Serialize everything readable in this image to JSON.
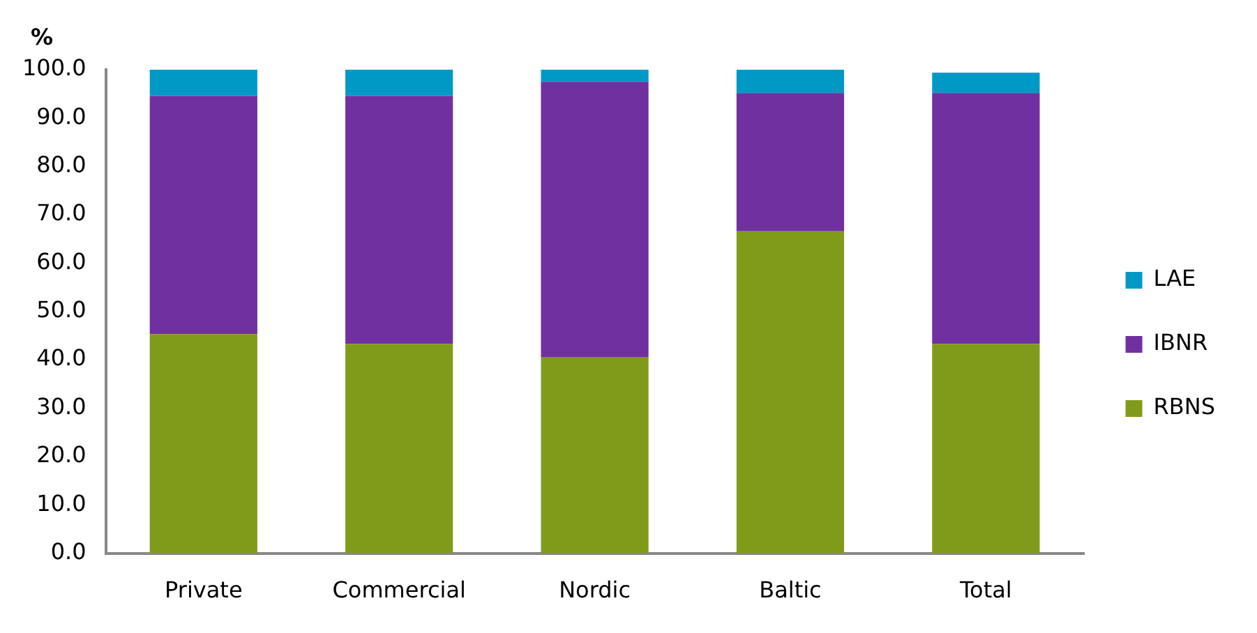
{
  "chart_data": {
    "type": "bar",
    "stacked": true,
    "ylabel": "%",
    "categories": [
      "Private",
      "Commercial",
      "Nordic",
      "Baltic",
      "Total"
    ],
    "series": [
      {
        "name": "RBNS",
        "color": "#809b19",
        "values": [
          45.3,
          43.3,
          40.5,
          66.6,
          43.3
        ]
      },
      {
        "name": "IBNR",
        "color": "#7030a0",
        "values": [
          37.7,
          39.7,
          57.0,
          16.4,
          39.7
        ]
      },
      {
        "color": "#7030a0",
        "values": [
          11.6,
          11.6,
          0,
          12.2,
          12.2
        ]
      },
      {
        "name": "LAE",
        "color": "#0099c6",
        "values": [
          5.4,
          5.4,
          2.5,
          4.8,
          4.2
        ]
      }
    ],
    "ylim": [
      0,
      100
    ],
    "yticks": [
      {
        "value": 0,
        "label": "0.0"
      },
      {
        "value": 10,
        "label": "10.0"
      },
      {
        "value": 20,
        "label": "20.0"
      },
      {
        "value": 30,
        "label": "30.0"
      },
      {
        "value": 40,
        "label": "40.0"
      },
      {
        "value": 50,
        "label": "50.0"
      },
      {
        "value": 60,
        "label": "60.0"
      },
      {
        "value": 70,
        "label": "70.0"
      },
      {
        "value": 80,
        "label": "80.0"
      },
      {
        "value": 90,
        "label": "90.0"
      },
      {
        "value": 100,
        "label": "100.0"
      }
    ],
    "grid": false,
    "legend": "right"
  }
}
